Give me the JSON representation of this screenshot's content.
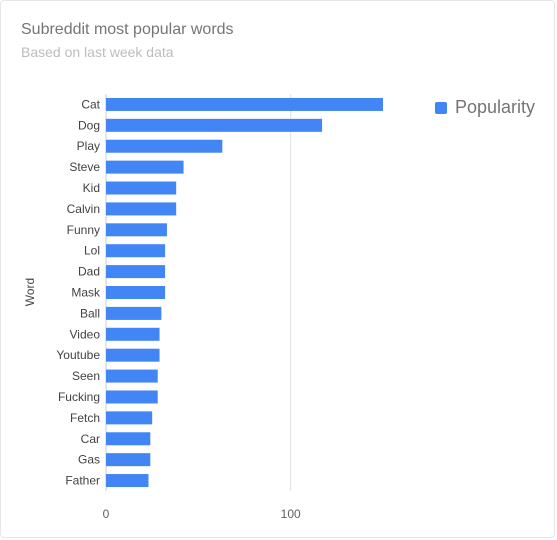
{
  "title": "Subreddit most popular words",
  "subtitle": "Based on last week data",
  "legend": {
    "label": "Popularity",
    "color": "#4285f4"
  },
  "chart_data": {
    "type": "bar",
    "orientation": "horizontal",
    "title": "Subreddit most popular words",
    "subtitle": "Based on last week data",
    "ylabel": "Word",
    "xlabel": "",
    "xlim": [
      0,
      150
    ],
    "xticks": [
      0,
      100
    ],
    "grid": true,
    "legend_position": "top-right",
    "categories": [
      "Cat",
      "Dog",
      "Play",
      "Steve",
      "Kid",
      "Calvin",
      "Funny",
      "Lol",
      "Dad",
      "Mask",
      "Ball",
      "Video",
      "Youtube",
      "Seen",
      "Fucking",
      "Fetch",
      "Car",
      "Gas",
      "Father"
    ],
    "series": [
      {
        "name": "Popularity",
        "color": "#4285f4",
        "values": [
          150,
          117,
          63,
          42,
          38,
          38,
          33,
          32,
          32,
          32,
          30,
          29,
          29,
          28,
          28,
          25,
          24,
          24,
          23
        ]
      }
    ]
  }
}
